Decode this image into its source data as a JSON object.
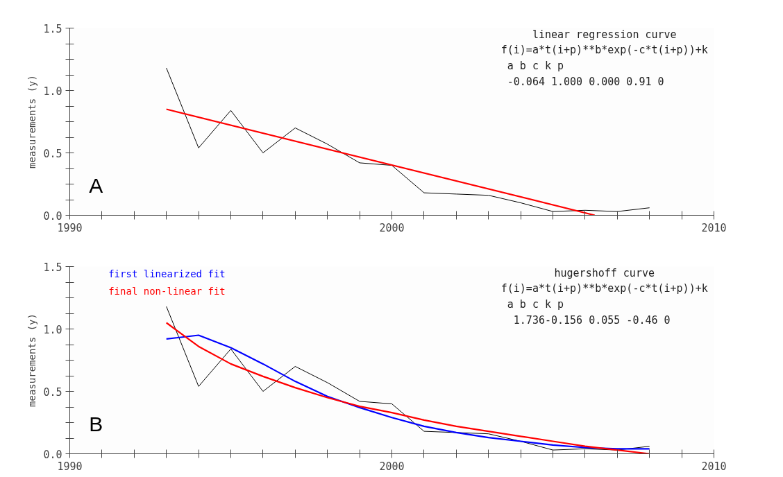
{
  "chart_data": [
    {
      "type": "line",
      "ylabel": "measurements (y)",
      "xlim": [
        1990,
        2010
      ],
      "ylim": [
        0,
        1.5
      ],
      "xticks": [
        {
          "value": 1990,
          "label": "1990"
        },
        {
          "value": 1991,
          "label": null
        },
        {
          "value": 1992,
          "label": null
        },
        {
          "value": 1993,
          "label": null
        },
        {
          "value": 1994,
          "label": null
        },
        {
          "value": 1995,
          "label": null
        },
        {
          "value": 1996,
          "label": null
        },
        {
          "value": 1997,
          "label": null
        },
        {
          "value": 1998,
          "label": null
        },
        {
          "value": 1999,
          "label": null
        },
        {
          "value": 2000,
          "label": "2000"
        },
        {
          "value": 2001,
          "label": null
        },
        {
          "value": 2002,
          "label": null
        },
        {
          "value": 2003,
          "label": null
        },
        {
          "value": 2004,
          "label": null
        },
        {
          "value": 2005,
          "label": null
        },
        {
          "value": 2006,
          "label": null
        },
        {
          "value": 2007,
          "label": null
        },
        {
          "value": 2008,
          "label": null
        },
        {
          "value": 2009,
          "label": null
        },
        {
          "value": 2010,
          "label": "2010"
        }
      ],
      "yticks": [
        {
          "value": 0,
          "label": "0.0"
        },
        {
          "value": 0.125,
          "label": null
        },
        {
          "value": 0.25,
          "label": null
        },
        {
          "value": 0.375,
          "label": null
        },
        {
          "value": 0.5,
          "label": "0.5"
        },
        {
          "value": 0.625,
          "label": null
        },
        {
          "value": 0.75,
          "label": null
        },
        {
          "value": 0.875,
          "label": null
        },
        {
          "value": 1.0,
          "label": "1.0"
        },
        {
          "value": 1.125,
          "label": null
        },
        {
          "value": 1.25,
          "label": null
        },
        {
          "value": 1.375,
          "label": null
        },
        {
          "value": 1.5,
          "label": "1.5"
        }
      ],
      "grid": false,
      "marker": "none",
      "line_style": "solid",
      "series": [
        {
          "color": "#000000",
          "x": [
            1993,
            1994,
            1995,
            1996,
            1997,
            1998,
            1999,
            2000,
            2001,
            2002,
            2003,
            2004,
            2005,
            2006,
            2007,
            2008
          ],
          "values": [
            1.18,
            0.54,
            0.84,
            0.5,
            0.7,
            0.57,
            0.42,
            0.4,
            0.18,
            0.17,
            0.16,
            0.1,
            0.03,
            0.04,
            0.03,
            0.06
          ]
        },
        {
          "color": "#ff0000",
          "x": [
            1993,
            2006.3
          ],
          "values": [
            0.85,
            0.0
          ]
        }
      ],
      "annotations": [
        "linear regression curve",
        "f(i)=a*t(i+p)**b*exp(-c*t(i+p))+k",
        "    a      b      c      k    p",
        "-0.064  1.000  0.000   0.91   0",
        "A"
      ]
    },
    {
      "type": "line",
      "ylabel": "measurements (y)",
      "xlim": [
        1990,
        2010
      ],
      "ylim": [
        0,
        1.5
      ],
      "xticks": [
        {
          "value": 1990,
          "label": "1990"
        },
        {
          "value": 1991,
          "label": null
        },
        {
          "value": 1992,
          "label": null
        },
        {
          "value": 1993,
          "label": null
        },
        {
          "value": 1994,
          "label": null
        },
        {
          "value": 1995,
          "label": null
        },
        {
          "value": 1996,
          "label": null
        },
        {
          "value": 1997,
          "label": null
        },
        {
          "value": 1998,
          "label": null
        },
        {
          "value": 1999,
          "label": null
        },
        {
          "value": 2000,
          "label": "2000"
        },
        {
          "value": 2001,
          "label": null
        },
        {
          "value": 2002,
          "label": null
        },
        {
          "value": 2003,
          "label": null
        },
        {
          "value": 2004,
          "label": null
        },
        {
          "value": 2005,
          "label": null
        },
        {
          "value": 2006,
          "label": null
        },
        {
          "value": 2007,
          "label": null
        },
        {
          "value": 2008,
          "label": null
        },
        {
          "value": 2009,
          "label": null
        },
        {
          "value": 2010,
          "label": "2010"
        }
      ],
      "yticks": [
        {
          "value": 0,
          "label": "0.0"
        },
        {
          "value": 0.125,
          "label": null
        },
        {
          "value": 0.25,
          "label": null
        },
        {
          "value": 0.375,
          "label": null
        },
        {
          "value": 0.5,
          "label": "0.5"
        },
        {
          "value": 0.625,
          "label": null
        },
        {
          "value": 0.75,
          "label": null
        },
        {
          "value": 0.875,
          "label": null
        },
        {
          "value": 1.0,
          "label": "1.0"
        },
        {
          "value": 1.125,
          "label": null
        },
        {
          "value": 1.25,
          "label": null
        },
        {
          "value": 1.375,
          "label": null
        },
        {
          "value": 1.5,
          "label": "1.5"
        }
      ],
      "grid": false,
      "marker": "none",
      "line_style": "solid",
      "series": [
        {
          "color": "#000000",
          "x": [
            1993,
            1994,
            1995,
            1996,
            1997,
            1998,
            1999,
            2000,
            2001,
            2002,
            2003,
            2004,
            2005,
            2006,
            2007,
            2008
          ],
          "values": [
            1.18,
            0.54,
            0.84,
            0.5,
            0.7,
            0.57,
            0.42,
            0.4,
            0.18,
            0.17,
            0.16,
            0.1,
            0.03,
            0.04,
            0.03,
            0.06
          ]
        },
        {
          "name": "first linearized fit",
          "color": "#0000ff",
          "x": [
            1993,
            1994,
            1995,
            1996,
            1997,
            1998,
            1999,
            2000,
            2001,
            2002,
            2003,
            2004,
            2005,
            2006,
            2007,
            2008
          ],
          "values": [
            0.92,
            0.95,
            0.85,
            0.72,
            0.58,
            0.46,
            0.37,
            0.29,
            0.22,
            0.17,
            0.13,
            0.1,
            0.07,
            0.05,
            0.04,
            0.04
          ]
        },
        {
          "name": "final non-linear fit",
          "color": "#ff0000",
          "x": [
            1993,
            1994,
            1995,
            1996,
            1997,
            1998,
            1999,
            2000,
            2001,
            2002,
            2003,
            2004,
            2005,
            2006,
            2007,
            2008
          ],
          "values": [
            1.05,
            0.86,
            0.72,
            0.62,
            0.53,
            0.45,
            0.38,
            0.33,
            0.27,
            0.22,
            0.18,
            0.14,
            0.1,
            0.06,
            0.03,
            0.0
          ]
        }
      ],
      "annotations": [
        "hugershoff curve",
        "f(i)=a*t(i+p)**b*exp(-c*t(i+p))+k",
        "    a      b      c      k    p",
        "1.736-0.156  0.055 -0.46    0",
        "B"
      ]
    }
  ]
}
